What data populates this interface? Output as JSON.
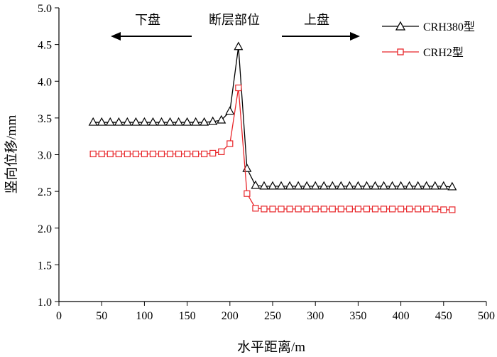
{
  "chart_data": {
    "type": "line",
    "xlabel": "水平距离/m",
    "ylabel": "竖向位移/mm",
    "xlim": [
      0,
      500
    ],
    "ylim": [
      1.0,
      5.0
    ],
    "xticks": [
      "0",
      "50",
      "100",
      "150",
      "200",
      "250",
      "300",
      "350",
      "400",
      "450",
      "500"
    ],
    "yticks": [
      "1.0",
      "1.5",
      "2.0",
      "2.5",
      "3.0",
      "3.5",
      "4.0",
      "4.5",
      "5.0"
    ],
    "grid": false,
    "legend_position": "top-right",
    "annotations": {
      "footwall": "下盘",
      "fault": "断层部位",
      "hangingwall": "上盘"
    },
    "series": [
      {
        "name": "CRH380型",
        "color": "#000000",
        "marker": "triangle",
        "x": [
          40,
          50,
          60,
          70,
          80,
          90,
          100,
          110,
          120,
          130,
          140,
          150,
          160,
          170,
          180,
          190,
          200,
          210,
          220,
          230,
          240,
          250,
          260,
          270,
          280,
          290,
          300,
          310,
          320,
          330,
          340,
          350,
          360,
          370,
          380,
          390,
          400,
          410,
          420,
          430,
          440,
          450,
          460
        ],
        "values": [
          3.44,
          3.44,
          3.44,
          3.44,
          3.44,
          3.44,
          3.44,
          3.44,
          3.44,
          3.44,
          3.44,
          3.44,
          3.44,
          3.44,
          3.45,
          3.47,
          3.59,
          4.47,
          2.81,
          2.58,
          2.57,
          2.57,
          2.57,
          2.57,
          2.57,
          2.57,
          2.57,
          2.57,
          2.57,
          2.57,
          2.57,
          2.57,
          2.57,
          2.57,
          2.57,
          2.57,
          2.57,
          2.57,
          2.57,
          2.57,
          2.57,
          2.57,
          2.56
        ]
      },
      {
        "name": "CRH2型",
        "color": "#e8262a",
        "marker": "square",
        "x": [
          40,
          50,
          60,
          70,
          80,
          90,
          100,
          110,
          120,
          130,
          140,
          150,
          160,
          170,
          180,
          190,
          200,
          210,
          220,
          230,
          240,
          250,
          260,
          270,
          280,
          290,
          300,
          310,
          320,
          330,
          340,
          350,
          360,
          370,
          380,
          390,
          400,
          410,
          420,
          430,
          440,
          450,
          460
        ],
        "values": [
          3.01,
          3.01,
          3.01,
          3.01,
          3.01,
          3.01,
          3.01,
          3.01,
          3.01,
          3.01,
          3.01,
          3.01,
          3.01,
          3.01,
          3.02,
          3.04,
          3.15,
          3.91,
          2.47,
          2.27,
          2.26,
          2.26,
          2.26,
          2.26,
          2.26,
          2.26,
          2.26,
          2.26,
          2.26,
          2.26,
          2.26,
          2.26,
          2.26,
          2.26,
          2.26,
          2.26,
          2.26,
          2.26,
          2.26,
          2.26,
          2.26,
          2.25,
          2.25
        ]
      }
    ]
  }
}
